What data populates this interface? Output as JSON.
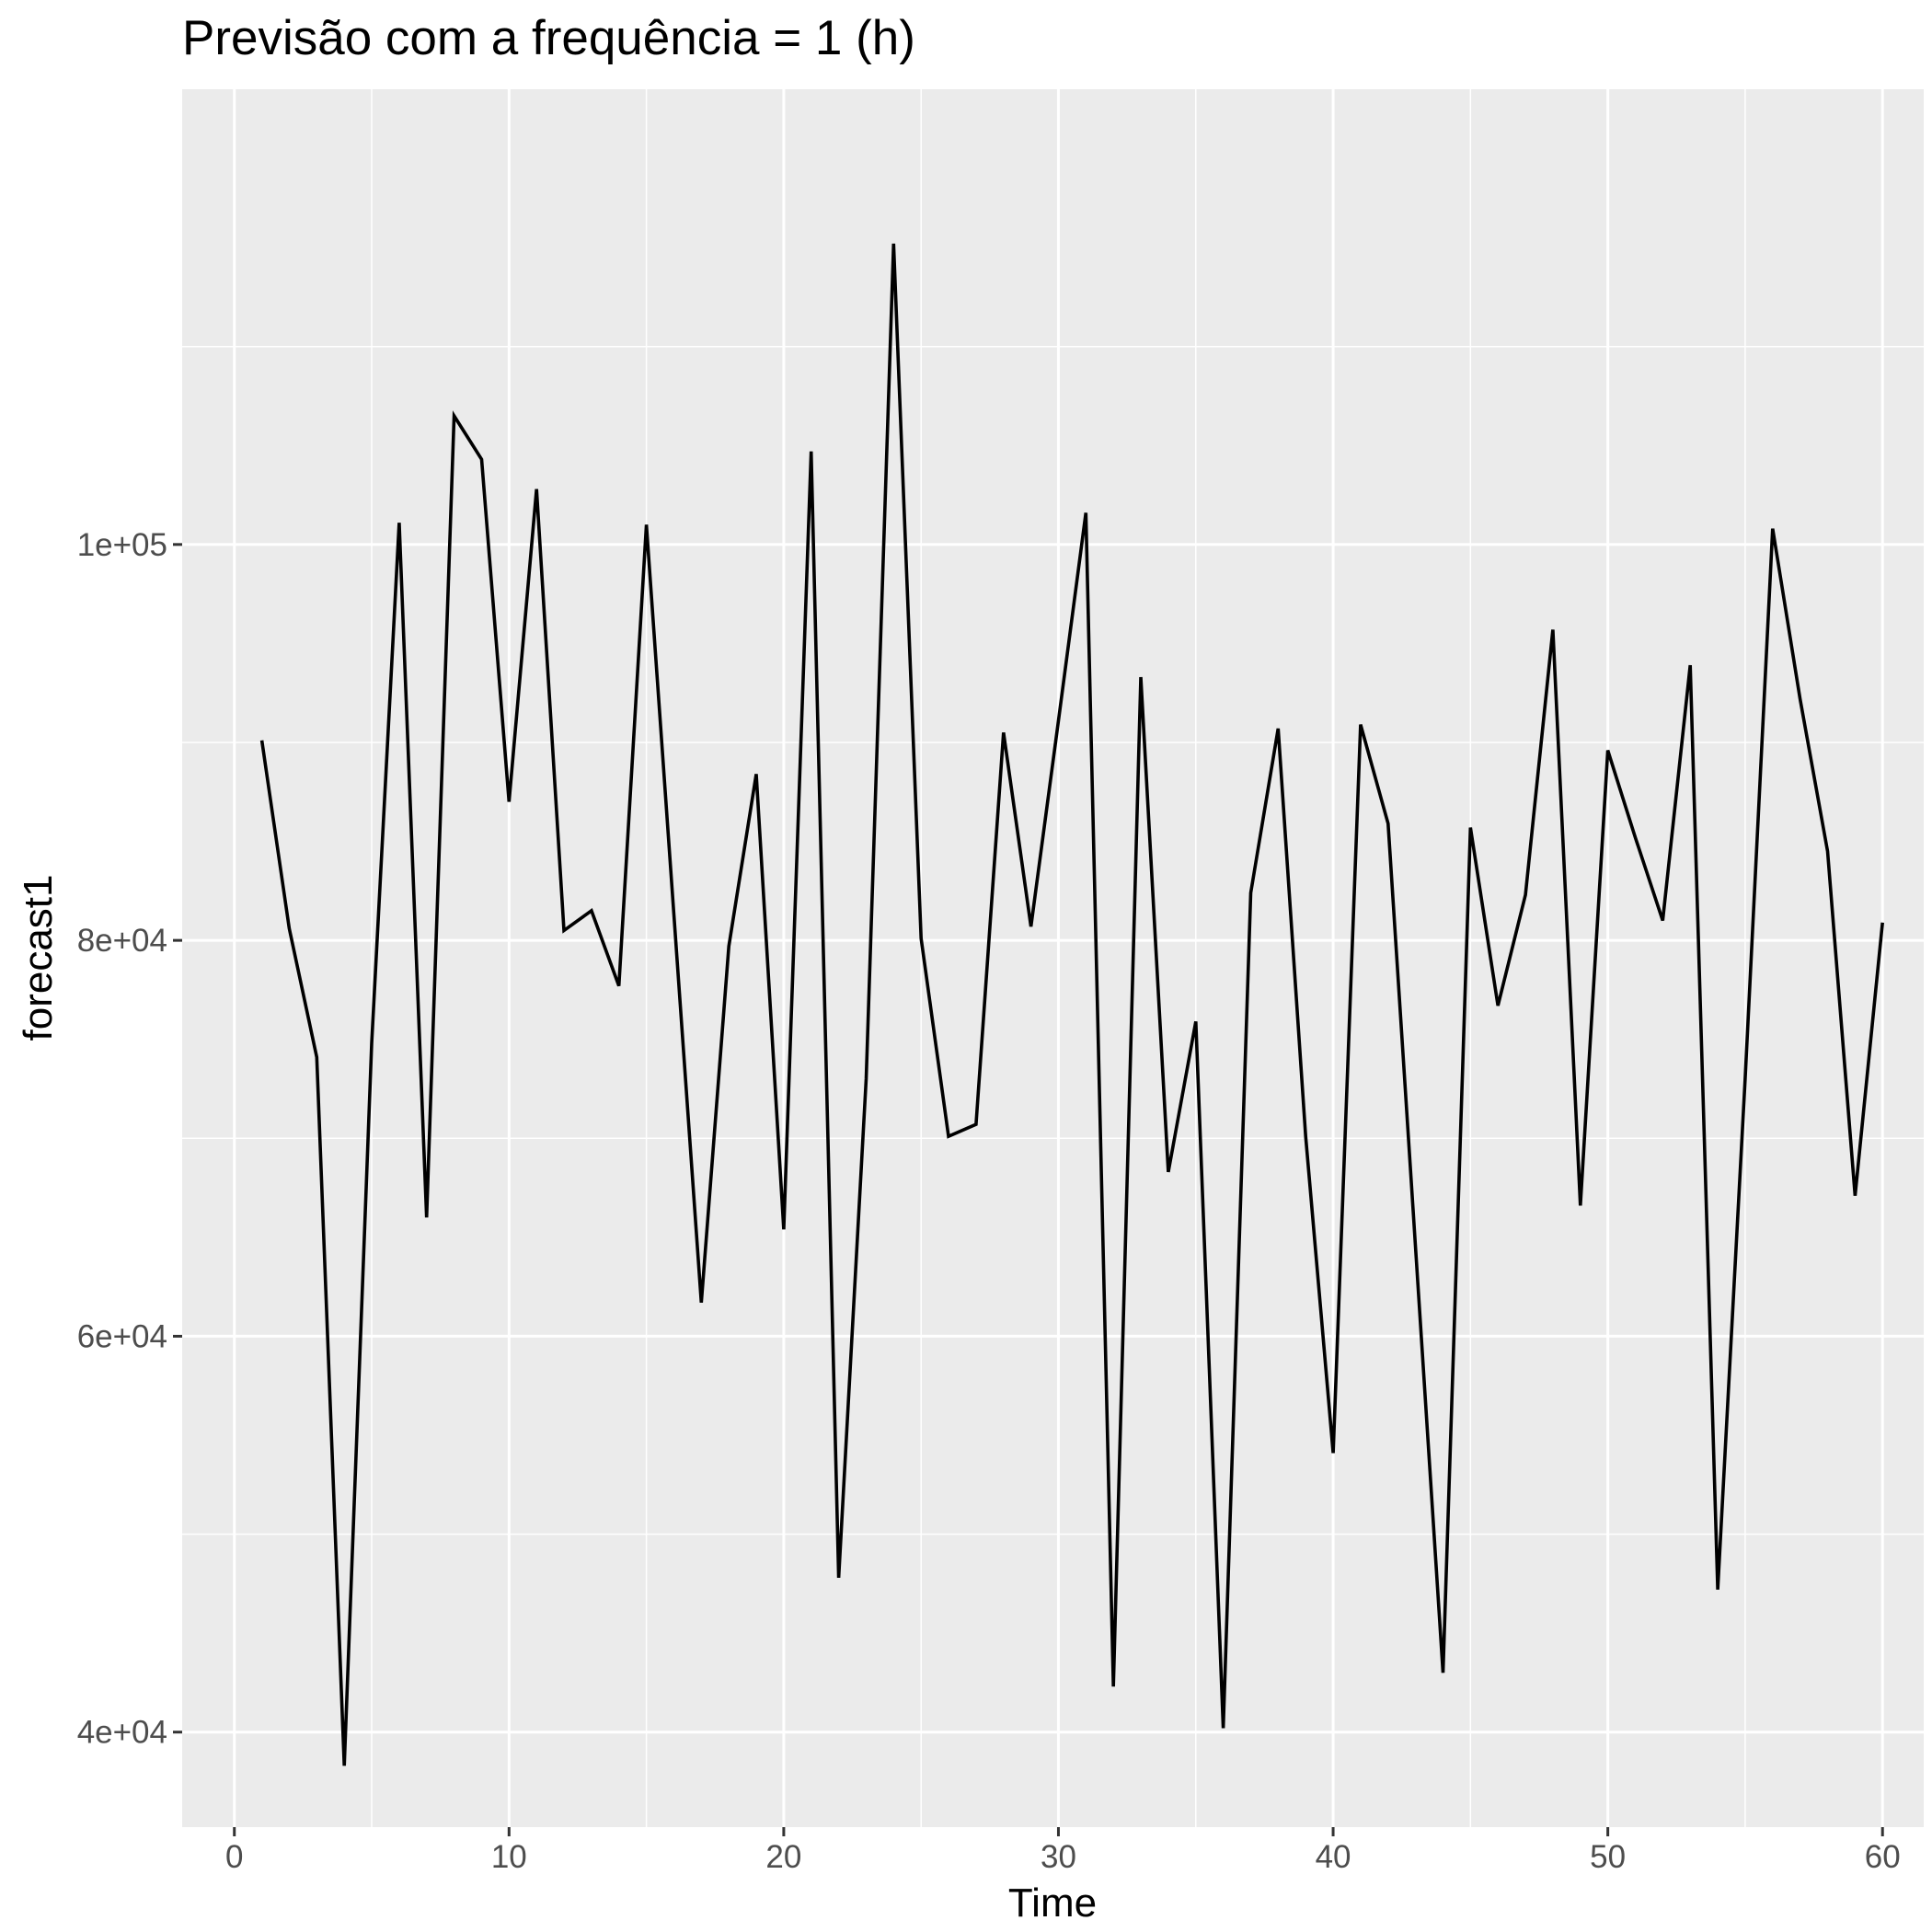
{
  "chart_data": {
    "type": "line",
    "title": "Previsão com a frequência = 1 (h)",
    "xlabel": "Time",
    "ylabel": "forecast1",
    "xlim": [
      -1.9,
      61.5
    ],
    "ylim": [
      35200,
      123000
    ],
    "x_ticks": [
      0,
      10,
      20,
      30,
      40,
      50,
      60
    ],
    "x_tick_labels": [
      "0",
      "10",
      "20",
      "30",
      "40",
      "50",
      "60"
    ],
    "x_minor_ticks": [
      5,
      15,
      25,
      35,
      45,
      55
    ],
    "y_ticks": [
      40000,
      60000,
      80000,
      100000
    ],
    "y_tick_labels": [
      "4e+04",
      "6e+04",
      "8e+04",
      "1e+05"
    ],
    "y_minor_ticks": [
      50000,
      70000,
      90000,
      110000
    ],
    "grid": true,
    "legend": "none",
    "colors": {
      "panel_background": "#ebebeb",
      "grid_major": "#ffffff",
      "grid_minor": "#ffffff",
      "line": "#000000",
      "tick_label": "#4d4d4d",
      "tick_mark": "#333333"
    },
    "series": [
      {
        "x": [
          1,
          2,
          3,
          4,
          5,
          6,
          7,
          8,
          9,
          10,
          11,
          12,
          13,
          14,
          15,
          16,
          17,
          18,
          19,
          20,
          21,
          22,
          23,
          24,
          25,
          26,
          27,
          28,
          29,
          30,
          31,
          32,
          33,
          34,
          35,
          36,
          37,
          38,
          39,
          40,
          41,
          42,
          43,
          44,
          45,
          46,
          47,
          48,
          49,
          50,
          51,
          52,
          53,
          54,
          55,
          56,
          57,
          58,
          59,
          60
        ],
        "values": [
          90100,
          80600,
          74100,
          38300,
          74800,
          101100,
          66000,
          106500,
          104300,
          87000,
          102800,
          80500,
          81500,
          77700,
          101000,
          81300,
          61700,
          79700,
          88400,
          65400,
          104700,
          47800,
          73000,
          115200,
          80100,
          70100,
          70700,
          90500,
          80700,
          91100,
          101600,
          42300,
          93300,
          68300,
          75900,
          40200,
          82400,
          90700,
          70100,
          54100,
          90900,
          85900,
          64500,
          43000,
          85700,
          76700,
          82300,
          95700,
          66600,
          89600,
          85200,
          81000,
          93900,
          47200,
          73000,
          100800,
          92200,
          84500,
          67100,
          80900
        ]
      }
    ]
  }
}
